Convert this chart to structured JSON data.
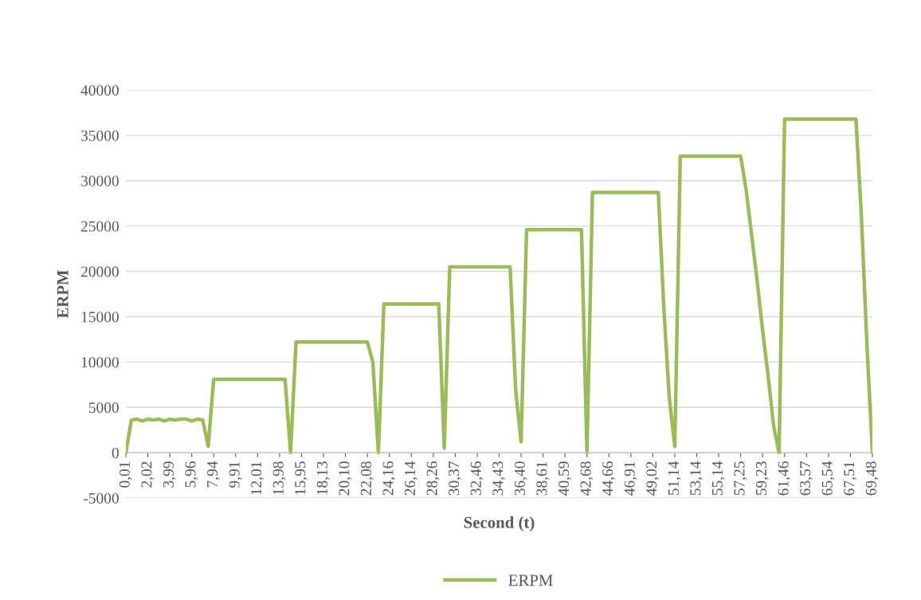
{
  "chart_data": {
    "type": "line",
    "xlabel": "Second (t)",
    "ylabel": "ERPM",
    "categories": [
      "0,01",
      null,
      null,
      null,
      "2,02",
      null,
      null,
      null,
      "3,99",
      null,
      null,
      null,
      "5,96",
      null,
      null,
      null,
      "7,94",
      null,
      null,
      null,
      "9,91",
      null,
      null,
      null,
      "12,01",
      null,
      null,
      null,
      "13,98",
      null,
      null,
      null,
      "15,95",
      null,
      null,
      null,
      "18,13",
      null,
      null,
      null,
      "20,10",
      null,
      null,
      null,
      "22,08",
      null,
      null,
      null,
      "24,16",
      null,
      null,
      null,
      "26,14",
      null,
      null,
      null,
      "28,26",
      null,
      null,
      null,
      "30,37",
      null,
      null,
      null,
      "32,46",
      null,
      null,
      null,
      "34,43",
      null,
      null,
      null,
      "36,40",
      null,
      null,
      null,
      "38,61",
      null,
      null,
      null,
      "40,59",
      null,
      null,
      null,
      "42,68",
      null,
      null,
      null,
      "44,66",
      null,
      null,
      null,
      "46,91",
      null,
      null,
      null,
      "49,02",
      null,
      null,
      null,
      "51,14",
      null,
      null,
      null,
      "53,14",
      null,
      null,
      null,
      "55,14",
      null,
      null,
      null,
      "57,25",
      null,
      null,
      null,
      "59,23",
      null,
      null,
      null,
      "61,46",
      null,
      null,
      null,
      "63,57",
      null,
      null,
      null,
      "65,54",
      null,
      null,
      null,
      "67,51",
      null,
      null,
      null,
      "69,48"
    ],
    "series": [
      {
        "name": "ERPM",
        "color": "#9bbb59",
        "values": [
          0,
          3600,
          3700,
          3500,
          3700,
          3600,
          3700,
          3500,
          3700,
          3600,
          3700,
          3700,
          3500,
          3700,
          3600,
          700,
          8100,
          8100,
          8100,
          8100,
          8100,
          8100,
          8100,
          8100,
          8100,
          8100,
          8100,
          8100,
          8100,
          8100,
          0,
          12200,
          12200,
          12200,
          12200,
          12200,
          12200,
          12200,
          12200,
          12200,
          12200,
          12200,
          12200,
          12200,
          12200,
          10000,
          0,
          16400,
          16400,
          16400,
          16400,
          16400,
          16400,
          16400,
          16400,
          16400,
          16400,
          16400,
          500,
          20500,
          20500,
          20500,
          20500,
          20500,
          20500,
          20500,
          20500,
          20500,
          20500,
          20500,
          20500,
          7000,
          1200,
          24600,
          24600,
          24600,
          24600,
          24600,
          24600,
          24600,
          24600,
          24600,
          24600,
          24600,
          0,
          28700,
          28700,
          28700,
          28700,
          28700,
          28700,
          28700,
          28700,
          28700,
          28700,
          28700,
          28700,
          28700,
          16000,
          6000,
          700,
          32700,
          32700,
          32700,
          32700,
          32700,
          32700,
          32700,
          32700,
          32700,
          32700,
          32700,
          32700,
          29000,
          24000,
          19000,
          13500,
          8500,
          3000,
          0,
          36800,
          36800,
          36800,
          36800,
          36800,
          36800,
          36800,
          36800,
          36800,
          36800,
          36800,
          36800,
          36800,
          36800,
          26000,
          12000,
          0
        ]
      }
    ],
    "ylim": [
      -5000,
      40000
    ],
    "yticks": [
      -5000,
      0,
      5000,
      10000,
      15000,
      20000,
      25000,
      30000,
      35000,
      40000
    ],
    "grid": "y",
    "legend": "bottom"
  }
}
